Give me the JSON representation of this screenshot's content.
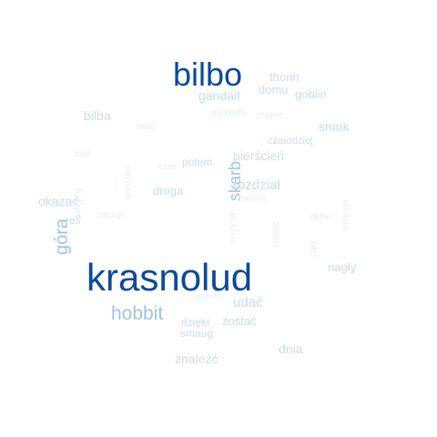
{
  "word_cloud": {
    "colors": {
      "background": "#ffffff",
      "dark": "#0c4a9c",
      "medium": "#9dc4e4",
      "light": "#c9dcee",
      "faint": "#e6eef7"
    },
    "words": [
      {
        "text": "krasnolud",
        "tone": "dark",
        "vertical": false
      },
      {
        "text": "bilbo",
        "tone": "dark",
        "vertical": false
      },
      {
        "text": "hobbit",
        "tone": "medium",
        "vertical": false
      },
      {
        "text": "góra",
        "tone": "medium",
        "vertical": true
      },
      {
        "text": "skarb",
        "tone": "medium",
        "vertical": true
      },
      {
        "text": "rozdział",
        "tone": "light",
        "vertical": false
      },
      {
        "text": "pierścień",
        "tone": "light",
        "vertical": false
      },
      {
        "text": "gandalf",
        "tone": "light",
        "vertical": false
      },
      {
        "text": "thorin",
        "tone": "light",
        "vertical": false
      },
      {
        "text": "domu",
        "tone": "light",
        "vertical": false
      },
      {
        "text": "goblin",
        "tone": "light",
        "vertical": false
      },
      {
        "text": "bilba",
        "tone": "light",
        "vertical": false
      },
      {
        "text": "smok",
        "tone": "light",
        "vertical": false
      },
      {
        "text": "okazać",
        "tone": "light",
        "vertical": false
      },
      {
        "text": "droga",
        "tone": "light",
        "vertical": false
      },
      {
        "text": "potem",
        "tone": "light",
        "vertical": false
      },
      {
        "text": "udać",
        "tone": "light",
        "vertical": false
      },
      {
        "text": "zostać",
        "tone": "light",
        "vertical": false
      },
      {
        "text": "znaleźć",
        "tone": "light",
        "vertical": false
      },
      {
        "text": "dnia",
        "tone": "light",
        "vertical": false
      },
      {
        "text": "nagły",
        "tone": "light",
        "vertical": false
      },
      {
        "text": "czarodziej",
        "tone": "light",
        "vertical": false
      },
      {
        "text": "elf",
        "tone": "light",
        "vertical": false
      },
      {
        "text": "dzięki",
        "tone": "light",
        "vertical": false
      },
      {
        "text": "smaug",
        "tone": "light",
        "vertical": false
      },
      {
        "text": "gandalfa",
        "tone": "faint",
        "vertical": false
      },
      {
        "text": "chcieć",
        "tone": "faint",
        "vertical": false
      },
      {
        "text": "bard",
        "tone": "faint",
        "vertical": false
      },
      {
        "text": "troll",
        "tone": "faint",
        "vertical": false
      },
      {
        "text": "czas",
        "tone": "faint",
        "vertical": false
      },
      {
        "text": "zacząć",
        "tone": "faint",
        "vertical": false
      },
      {
        "text": "drzwi",
        "tone": "faint",
        "vertical": false
      },
      {
        "text": "thorina",
        "tone": "faint",
        "vertical": false
      },
      {
        "text": "jezioro",
        "tone": "faint",
        "vertical": false
      },
      {
        "text": "następny",
        "tone": "faint",
        "vertical": true
      },
      {
        "text": "wiedzieć",
        "tone": "faint",
        "vertical": true
      },
      {
        "text": "wszystko",
        "tone": "faint",
        "vertical": true
      },
      {
        "text": "koniec",
        "tone": "faint",
        "vertical": true
      },
      {
        "text": "cały",
        "tone": "faint",
        "vertical": true
      },
      {
        "text": "smauga",
        "tone": "faint",
        "vertical": true
      }
    ]
  }
}
